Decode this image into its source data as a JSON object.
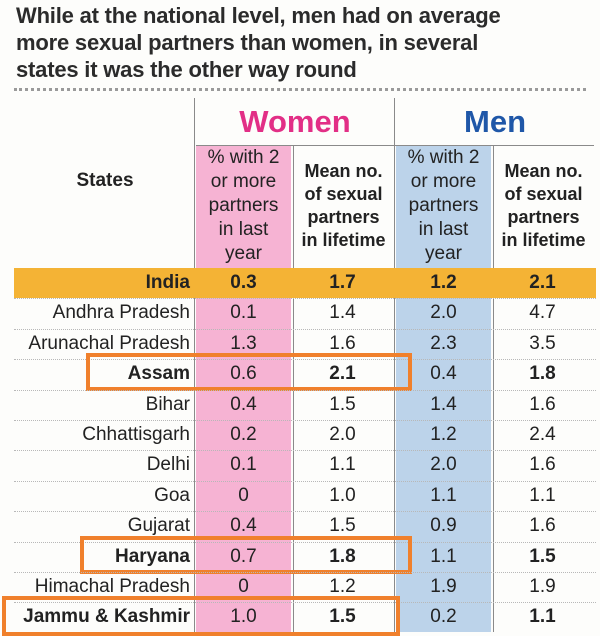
{
  "title": {
    "line1": "While at the national level, men had on average",
    "line2": "more sexual partners than women, in several",
    "line3": "states it was the other way round"
  },
  "colors": {
    "women": "#e22f86",
    "men": "#1f57a8",
    "women_bg": "#f6b3d3",
    "men_bg": "#bcd3ea",
    "india_band": "#f4b335",
    "highlight": "#f0802c"
  },
  "chart_data": {
    "type": "table",
    "groups": [
      "Women",
      "Men"
    ],
    "columns": [
      "States",
      "% with 2 or more partners in last year",
      "Mean no. of sexual partners in lifetime",
      "% with 2 or more partners in last year",
      "Mean no. of sexual partners in lifetime"
    ],
    "header_lines": {
      "states": "States",
      "pct": [
        "% with 2",
        "or more",
        "partners",
        "in last",
        "year"
      ],
      "mean": [
        "Mean no.",
        "of sexual",
        "partners",
        "in lifetime"
      ]
    },
    "rows": [
      {
        "state": "India",
        "w_pct": "0.3",
        "w_mean": "1.7",
        "m_pct": "1.2",
        "m_mean": "2.1",
        "highlight": false
      },
      {
        "state": "Andhra Pradesh",
        "w_pct": "0.1",
        "w_mean": "1.4",
        "m_pct": "2.0",
        "m_mean": "4.7",
        "highlight": false
      },
      {
        "state": "Arunachal Pradesh",
        "w_pct": "1.3",
        "w_mean": "1.6",
        "m_pct": "2.3",
        "m_mean": "3.5",
        "highlight": false
      },
      {
        "state": "Assam",
        "w_pct": "0.6",
        "w_mean": "2.1",
        "m_pct": "0.4",
        "m_mean": "1.8",
        "highlight": true
      },
      {
        "state": "Bihar",
        "w_pct": "0.4",
        "w_mean": "1.5",
        "m_pct": "1.4",
        "m_mean": "1.6",
        "highlight": false
      },
      {
        "state": "Chhattisgarh",
        "w_pct": "0.2",
        "w_mean": "2.0",
        "m_pct": "1.2",
        "m_mean": "2.4",
        "highlight": false
      },
      {
        "state": "Delhi",
        "w_pct": "0.1",
        "w_mean": "1.1",
        "m_pct": "2.0",
        "m_mean": "1.6",
        "highlight": false
      },
      {
        "state": "Goa",
        "w_pct": "0",
        "w_mean": "1.0",
        "m_pct": "1.1",
        "m_mean": "1.1",
        "highlight": false
      },
      {
        "state": "Gujarat",
        "w_pct": "0.4",
        "w_mean": "1.5",
        "m_pct": "0.9",
        "m_mean": "1.6",
        "highlight": false
      },
      {
        "state": "Haryana",
        "w_pct": "0.7",
        "w_mean": "1.8",
        "m_pct": "1.1",
        "m_mean": "1.5",
        "highlight": true
      },
      {
        "state": "Himachal Pradesh",
        "w_pct": "0",
        "w_mean": "1.2",
        "m_pct": "1.9",
        "m_mean": "1.9",
        "highlight": false
      },
      {
        "state": "Jammu & Kashmir",
        "w_pct": "1.0",
        "w_mean": "1.5",
        "m_pct": "0.2",
        "m_mean": "1.1",
        "highlight": true
      }
    ]
  }
}
